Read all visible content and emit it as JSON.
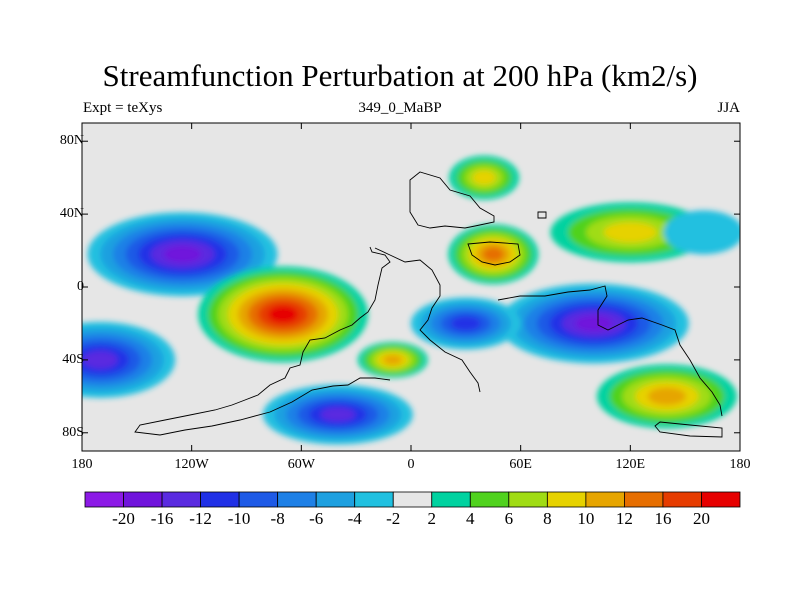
{
  "title": "Streamfunction Perturbation at 200 hPa (km2/s)",
  "left_subtitle": "Expt = teXys",
  "center_subtitle": "349_0_MaBP",
  "right_subtitle": "JJA",
  "map": {
    "projection": "cylindrical-equidistant",
    "lon_range": [
      -180,
      180
    ],
    "lat_range": [
      -90,
      90
    ],
    "lat_ticks": [
      "80N",
      "40N",
      "0",
      "40S",
      "80S"
    ],
    "lat_tick_values": [
      80,
      40,
      0,
      -40,
      -80
    ],
    "lon_ticks": [
      "180",
      "120W",
      "60W",
      "0",
      "60E",
      "120E",
      "180"
    ],
    "lon_tick_values": [
      -180,
      -120,
      -60,
      0,
      60,
      120,
      180
    ],
    "background_color": "#e6e6e6"
  },
  "colorbar": {
    "labels": [
      "-20",
      "-16",
      "-12",
      "-10",
      "-8",
      "-6",
      "-4",
      "-2",
      "2",
      "4",
      "6",
      "8",
      "10",
      "12",
      "16",
      "20"
    ],
    "colors": [
      "#8c1ae6",
      "#7014dc",
      "#5a2be0",
      "#2030e6",
      "#1e5ae6",
      "#1e80e6",
      "#1ea0e0",
      "#20c0e0",
      "#e6e6e6",
      "#00d2a0",
      "#50d21e",
      "#a0dc14",
      "#e6d200",
      "#e6a500",
      "#e66e00",
      "#e63c00",
      "#e60000"
    ]
  },
  "chart_data": {
    "type": "heatmap",
    "variable": "Streamfunction Perturbation at 200 hPa (km2/s)",
    "features": [
      {
        "lon": -125,
        "lat": 18,
        "value": -18
      },
      {
        "lon": -70,
        "lat": -15,
        "value": 20
      },
      {
        "lon": -170,
        "lat": -40,
        "value": -14
      },
      {
        "lon": 100,
        "lat": -20,
        "value": -16
      },
      {
        "lon": 45,
        "lat": 18,
        "value": 14
      },
      {
        "lon": 40,
        "lat": 60,
        "value": 8
      },
      {
        "lon": -40,
        "lat": -70,
        "value": -12
      },
      {
        "lon": 140,
        "lat": -60,
        "value": 10
      },
      {
        "lon": -10,
        "lat": -40,
        "value": 10
      },
      {
        "lon": 120,
        "lat": 30,
        "value": 8
      },
      {
        "lon": 30,
        "lat": -20,
        "value": -10
      },
      {
        "lon": 160,
        "lat": 30,
        "value": -2
      }
    ]
  }
}
